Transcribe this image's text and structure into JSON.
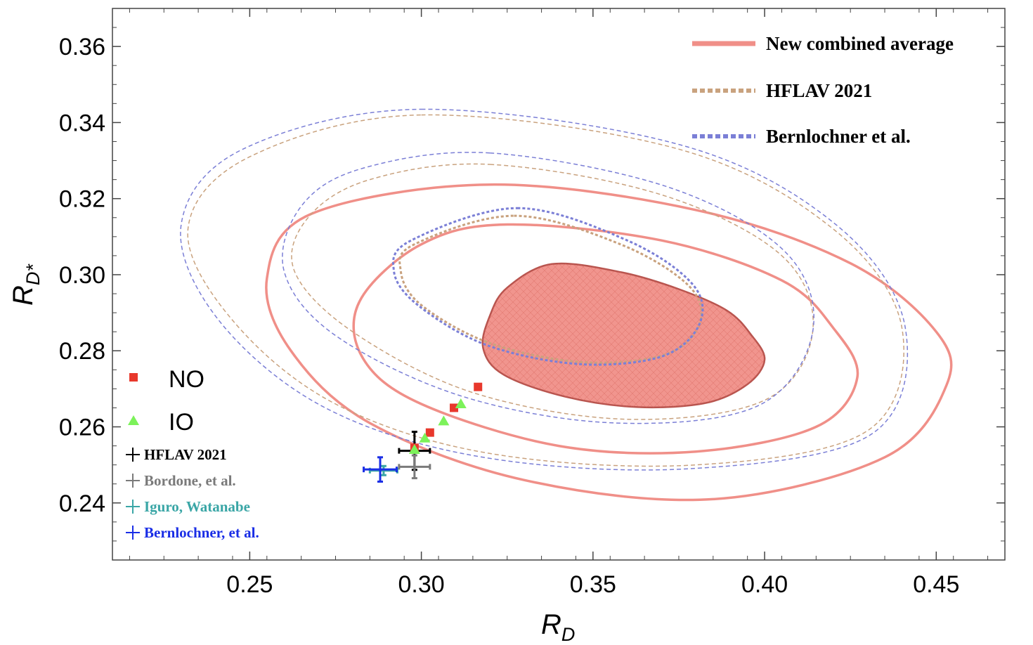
{
  "chart_data": {
    "type": "scatter",
    "xlabel": "R",
    "xlabel_sub": "D",
    "ylabel": "R",
    "ylabel_sub": "D*",
    "xlim": [
      0.21,
      0.47
    ],
    "ylim": [
      0.225,
      0.37
    ],
    "xticks": [
      0.25,
      0.3,
      0.35,
      0.4,
      0.45
    ],
    "xtick_labels": [
      "0.25",
      "0.30",
      "0.35",
      "0.40",
      "0.45"
    ],
    "yticks": [
      0.24,
      0.26,
      0.28,
      0.3,
      0.32,
      0.34,
      0.36
    ],
    "ytick_labels": [
      "0.24",
      "0.26",
      "0.28",
      "0.30",
      "0.32",
      "0.34",
      "0.36"
    ],
    "grid": false,
    "legend_top_right": [
      {
        "label": "New combined average",
        "color": "#f08f88",
        "style": "solid"
      },
      {
        "label": "HFLAV 2021",
        "color": "#c9a27e",
        "style": "dashed"
      },
      {
        "label": "Bernlochner et al.",
        "color": "#7b7fd6",
        "style": "dashed"
      }
    ],
    "legend_bottom_left": [
      {
        "label": "NO",
        "marker": "square",
        "color": "#e8382c"
      },
      {
        "label": "IO",
        "marker": "triangle",
        "color": "#7cf25a"
      },
      {
        "label": "HFLAV 2021",
        "marker": "cross",
        "color": "#000000"
      },
      {
        "label": "Bordone, et al.",
        "marker": "cross",
        "color": "#7a7a7a"
      },
      {
        "label": "Iguro, Watanabe",
        "marker": "cross",
        "color": "#3aa6a6"
      },
      {
        "label": "Bernlochner, et al.",
        "marker": "cross",
        "color": "#1a2ee6"
      }
    ],
    "contours": [
      {
        "group": "New combined average",
        "level": "1sigma",
        "filled": true,
        "color": "#f08f88",
        "points": [
          [
            0.338,
            0.3028
          ],
          [
            0.358,
            0.3007
          ],
          [
            0.375,
            0.2962
          ],
          [
            0.389,
            0.2906
          ],
          [
            0.396,
            0.2843
          ],
          [
            0.4,
            0.2777
          ],
          [
            0.395,
            0.2712
          ],
          [
            0.383,
            0.2663
          ],
          [
            0.363,
            0.2652
          ],
          [
            0.342,
            0.2679
          ],
          [
            0.324,
            0.2737
          ],
          [
            0.318,
            0.2807
          ],
          [
            0.32,
            0.2893
          ],
          [
            0.325,
            0.2966
          ]
        ]
      },
      {
        "group": "New combined average",
        "level": "2sigma",
        "filled": false,
        "color": "#f08f88",
        "points": [
          [
            0.325,
            0.3132
          ],
          [
            0.37,
            0.309
          ],
          [
            0.405,
            0.2985
          ],
          [
            0.42,
            0.286
          ],
          [
            0.427,
            0.273
          ],
          [
            0.415,
            0.26
          ],
          [
            0.38,
            0.2535
          ],
          [
            0.34,
            0.255
          ],
          [
            0.3,
            0.266
          ],
          [
            0.283,
            0.278
          ],
          [
            0.282,
            0.293
          ],
          [
            0.3,
            0.308
          ]
        ]
      },
      {
        "group": "New combined average",
        "level": "3sigma",
        "filled": false,
        "color": "#f08f88",
        "points": [
          [
            0.32,
            0.3237
          ],
          [
            0.38,
            0.317
          ],
          [
            0.425,
            0.303
          ],
          [
            0.45,
            0.285
          ],
          [
            0.453,
            0.271
          ],
          [
            0.435,
            0.252
          ],
          [
            0.385,
            0.241
          ],
          [
            0.33,
            0.246
          ],
          [
            0.285,
            0.261
          ],
          [
            0.262,
            0.28
          ],
          [
            0.255,
            0.299
          ],
          [
            0.268,
            0.316
          ]
        ]
      },
      {
        "group": "HFLAV 2021",
        "level": "1sigma",
        "filled": false,
        "color": "#c9a27e",
        "points": [
          [
            0.327,
            0.3155
          ],
          [
            0.358,
            0.308
          ],
          [
            0.378,
            0.297
          ],
          [
            0.381,
            0.287
          ],
          [
            0.371,
            0.279
          ],
          [
            0.347,
            0.277
          ],
          [
            0.32,
            0.282
          ],
          [
            0.3,
            0.292
          ],
          [
            0.294,
            0.301
          ],
          [
            0.298,
            0.308
          ]
        ]
      },
      {
        "group": "HFLAV 2021",
        "level": "2sigma",
        "filled": false,
        "color": "#c9a27e",
        "points": [
          [
            0.32,
            0.329
          ],
          [
            0.37,
            0.321
          ],
          [
            0.405,
            0.305
          ],
          [
            0.414,
            0.285
          ],
          [
            0.4,
            0.267
          ],
          [
            0.36,
            0.262
          ],
          [
            0.315,
            0.269
          ],
          [
            0.28,
            0.285
          ],
          [
            0.263,
            0.301
          ],
          [
            0.267,
            0.315
          ],
          [
            0.285,
            0.325
          ]
        ]
      },
      {
        "group": "HFLAV 2021",
        "level": "3sigma",
        "filled": false,
        "color": "#c9a27e",
        "points": [
          [
            0.3,
            0.342
          ],
          [
            0.375,
            0.333
          ],
          [
            0.42,
            0.312
          ],
          [
            0.44,
            0.286
          ],
          [
            0.43,
            0.259
          ],
          [
            0.38,
            0.25
          ],
          [
            0.32,
            0.253
          ],
          [
            0.275,
            0.266
          ],
          [
            0.245,
            0.288
          ],
          [
            0.232,
            0.312
          ],
          [
            0.25,
            0.331
          ]
        ]
      },
      {
        "group": "Bernlochner et al.",
        "level": "1sigma",
        "filled": false,
        "color": "#7b7fd6",
        "points": [
          [
            0.328,
            0.3175
          ],
          [
            0.36,
            0.309
          ],
          [
            0.379,
            0.2975
          ],
          [
            0.381,
            0.287
          ],
          [
            0.37,
            0.2785
          ],
          [
            0.346,
            0.2765
          ],
          [
            0.319,
            0.2815
          ],
          [
            0.299,
            0.292
          ],
          [
            0.292,
            0.301
          ],
          [
            0.297,
            0.309
          ]
        ]
      },
      {
        "group": "Bernlochner et al.",
        "level": "2sigma",
        "filled": false,
        "color": "#7b7fd6",
        "points": [
          [
            0.32,
            0.332
          ],
          [
            0.372,
            0.323
          ],
          [
            0.406,
            0.306
          ],
          [
            0.414,
            0.285
          ],
          [
            0.398,
            0.2655
          ],
          [
            0.357,
            0.261
          ],
          [
            0.312,
            0.268
          ],
          [
            0.275,
            0.284
          ],
          [
            0.26,
            0.301
          ],
          [
            0.265,
            0.318
          ],
          [
            0.283,
            0.328
          ]
        ]
      },
      {
        "group": "Bernlochner et al.",
        "level": "3sigma",
        "filled": false,
        "color": "#7b7fd6",
        "points": [
          [
            0.3,
            0.3435
          ],
          [
            0.376,
            0.334
          ],
          [
            0.421,
            0.313
          ],
          [
            0.441,
            0.286
          ],
          [
            0.431,
            0.258
          ],
          [
            0.378,
            0.249
          ],
          [
            0.318,
            0.252
          ],
          [
            0.272,
            0.265
          ],
          [
            0.241,
            0.288
          ],
          [
            0.23,
            0.313
          ],
          [
            0.248,
            0.333
          ]
        ]
      }
    ],
    "points": [
      {
        "series": "NO",
        "x": 0.3165,
        "y": 0.2705
      },
      {
        "series": "NO",
        "x": 0.3095,
        "y": 0.265
      },
      {
        "series": "NO",
        "x": 0.3025,
        "y": 0.2585
      },
      {
        "series": "NO",
        "x": 0.298,
        "y": 0.2545
      },
      {
        "series": "IO",
        "x": 0.3115,
        "y": 0.266
      },
      {
        "series": "IO",
        "x": 0.3065,
        "y": 0.2615
      },
      {
        "series": "IO",
        "x": 0.301,
        "y": 0.257
      },
      {
        "series": "IO",
        "x": 0.298,
        "y": 0.254
      }
    ],
    "error_points": [
      {
        "series": "HFLAV 2021",
        "x": 0.298,
        "y": 0.2537,
        "xerr": 0.0045,
        "yerr": 0.005
      },
      {
        "series": "Bordone, et al.",
        "x": 0.298,
        "y": 0.2495,
        "xerr": 0.0045,
        "yerr": 0.003
      },
      {
        "series": "Iguro, Watanabe",
        "x": 0.289,
        "y": 0.2485,
        "xerr": 0.004,
        "yerr": 0.0012
      },
      {
        "series": "Bernlochner, et al.",
        "x": 0.288,
        "y": 0.2488,
        "xerr": 0.0048,
        "yerr": 0.0032
      }
    ]
  }
}
